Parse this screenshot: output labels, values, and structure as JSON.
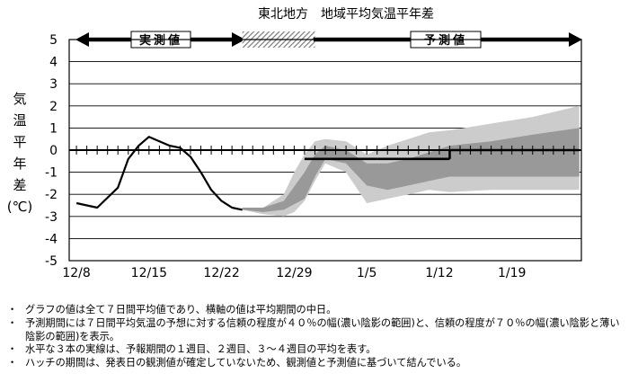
{
  "chart_data": {
    "type": "line",
    "title": "東北地方　地域平均気温平年差",
    "ylabel": "気温平年差(℃)",
    "ylim": [
      -5,
      5
    ],
    "y_ticks": [
      "5",
      "4",
      "3",
      "2",
      "1",
      "0",
      "-1",
      "-2",
      "-3",
      "-4",
      "-5"
    ],
    "x_tick_labels": [
      "12/8",
      "12/15",
      "12/22",
      "12/29",
      "1/5",
      "1/12",
      "1/19"
    ],
    "x_tick_days": [
      0,
      7,
      14,
      21,
      28,
      35,
      42
    ],
    "x_range_days": [
      -0.7,
      48.7
    ],
    "grid": true,
    "period_labels": {
      "observed": "実測値",
      "forecast": "予測値"
    },
    "observed": {
      "x_days": [
        0,
        2,
        4,
        5,
        6,
        7,
        8,
        9,
        10,
        11,
        12,
        13,
        14,
        15,
        16
      ],
      "y": [
        -2.4,
        -2.6,
        -1.7,
        -0.4,
        0.2,
        0.6,
        0.4,
        0.2,
        0.1,
        -0.3,
        -1.0,
        -1.8,
        -2.3,
        -2.6,
        -2.7
      ]
    },
    "hatch_days": [
      16,
      23
    ],
    "band70": {
      "x_days": [
        16,
        18,
        20,
        21,
        22,
        23,
        24,
        26,
        28,
        30,
        32,
        34,
        36,
        40,
        44,
        48.5
      ],
      "upper": [
        -2.6,
        -2.6,
        -2.0,
        -1.0,
        -0.2,
        0.4,
        0.5,
        0.4,
        -0.2,
        0.2,
        0.5,
        0.8,
        0.9,
        1.2,
        1.5,
        2.0
      ],
      "lower": [
        -2.7,
        -2.9,
        -3.0,
        -2.8,
        -2.3,
        -1.4,
        -0.6,
        -1.0,
        -2.4,
        -2.2,
        -2.0,
        -1.8,
        -1.9,
        -1.8,
        -1.8,
        -1.8
      ]
    },
    "band40": {
      "x_days": [
        16,
        18,
        20,
        22,
        23,
        24,
        26,
        28,
        30,
        32,
        34,
        36,
        40,
        44,
        48.5
      ],
      "upper": [
        -2.6,
        -2.6,
        -2.3,
        -1.0,
        -0.2,
        0.2,
        0.0,
        -0.6,
        -0.6,
        -0.4,
        -0.1,
        0.2,
        0.4,
        0.7,
        1.0
      ],
      "lower": [
        -2.7,
        -2.8,
        -2.7,
        -2.2,
        -1.2,
        -0.4,
        -0.6,
        -1.6,
        -1.8,
        -1.6,
        -1.4,
        -1.2,
        -1.2,
        -1.2,
        -1.2
      ]
    },
    "forecast_week1": {
      "x_days": [
        22,
        29
      ],
      "y": -0.4
    },
    "forecast_week2": {
      "x_days": [
        29,
        36
      ],
      "y": -0.4
    },
    "forecast_week3_4": {
      "x_days": [
        36,
        48.5
      ],
      "y": 0.0
    },
    "colors": {
      "observed_line": "#000000",
      "band70": "#cccccc",
      "band40": "#999999",
      "forecast_line": "#000000",
      "hatch": "#808080"
    }
  },
  "notes": [
    {
      "bullet": "・",
      "text": "グラフの値は全て７日間平均値であり、横軸の値は平均期間の中日。"
    },
    {
      "bullet": "・",
      "text": "予測期間には７日間平均気温の予想に対する信頼の程度が４０％の幅(濃い陰影の範囲)と、信頼の程度が７０％の幅(濃い陰影と薄い陰影の範囲)を表示。"
    },
    {
      "bullet": "・",
      "text": "水平な３本の実線は、予報期間の１週目、２週目、３～４週目の平均を表す。"
    },
    {
      "bullet": "・",
      "text": "ハッチの期間は、発表日の観測値が確定していないため、観測値と予測値に基づいて結んでいる。"
    }
  ]
}
